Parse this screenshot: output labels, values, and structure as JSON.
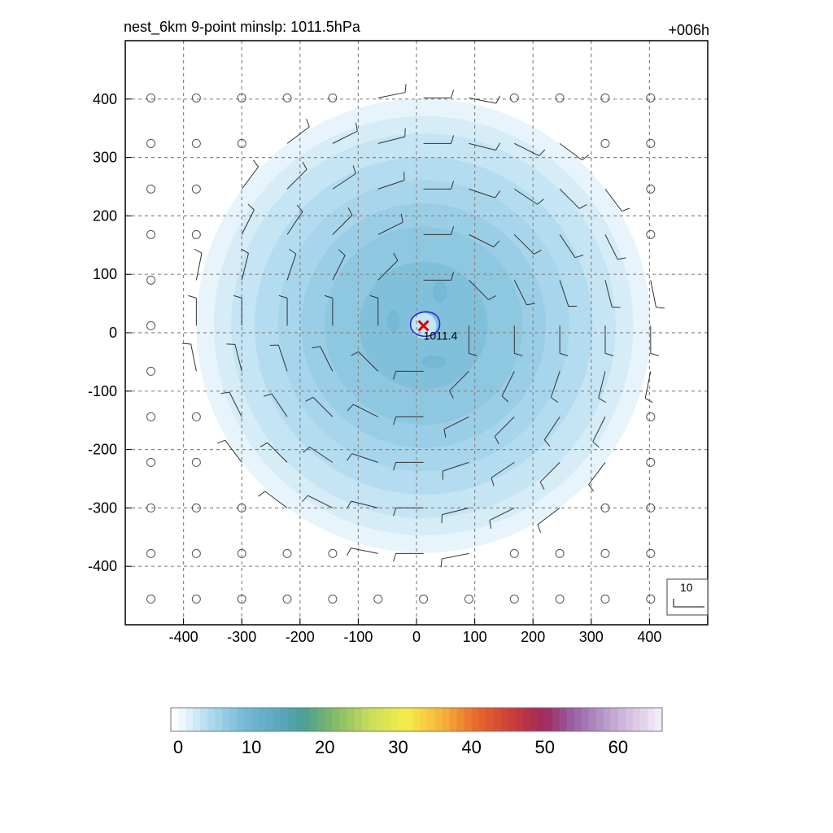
{
  "title_left": "nest_6km  9-point minslp: 1011.5hPa",
  "title_right": "+006h",
  "chart_data": {
    "type": "filled-contour-map",
    "title": "nest_6km  9-point minslp: 1011.5hPa",
    "valid_time_label": "+006h",
    "xlim": [
      -500,
      500
    ],
    "ylim": [
      -500,
      500
    ],
    "xticks": [
      -400,
      -300,
      -200,
      -100,
      0,
      100,
      200,
      300,
      400
    ],
    "yticks": [
      -400,
      -300,
      -200,
      -100,
      0,
      100,
      200,
      300,
      400
    ],
    "xtick_labels": [
      "-400",
      "-300",
      "-200",
      "-100",
      "0",
      "100",
      "200",
      "300",
      "400"
    ],
    "ytick_labels": [
      "400",
      "300",
      "200",
      "100",
      "0",
      "-100",
      "-200",
      "-300",
      "-400"
    ],
    "grid": true,
    "wind_field": {
      "center": [
        12,
        12
      ],
      "levels": [
        {
          "radius": 390,
          "value": 2
        },
        {
          "radius": 360,
          "value": 3
        },
        {
          "radius": 330,
          "value": 4
        },
        {
          "radius": 290,
          "value": 5
        },
        {
          "radius": 250,
          "value": 6
        },
        {
          "radius": 210,
          "value": 7
        },
        {
          "radius": 170,
          "value": 8
        },
        {
          "radius": 110,
          "value": 9
        }
      ],
      "barb_spacing": 78,
      "calm_radius": 400
    },
    "min_pressure_contour": {
      "value": "1011.4",
      "center": [
        12,
        12
      ],
      "radius": 22
    },
    "center_marker": {
      "x": 12,
      "y": 12,
      "symbol": "x",
      "color": "#dd0000"
    },
    "reference_vector": {
      "label": "10"
    },
    "colorbar": {
      "min": 0,
      "max": 67,
      "tick_values": [
        0,
        10,
        20,
        30,
        40,
        50,
        60
      ],
      "tick_labels": [
        "0",
        "10",
        "20",
        "30",
        "40",
        "50",
        "60"
      ],
      "color_stops": [
        {
          "value": 0,
          "color": "#ffffff"
        },
        {
          "value": 2,
          "color": "#e8f4fb"
        },
        {
          "value": 5,
          "color": "#b3dcf0"
        },
        {
          "value": 10,
          "color": "#75b9d6"
        },
        {
          "value": 15,
          "color": "#5aa6bd"
        },
        {
          "value": 18,
          "color": "#4a9e94"
        },
        {
          "value": 22,
          "color": "#7db86a"
        },
        {
          "value": 27,
          "color": "#c8dc5a"
        },
        {
          "value": 32,
          "color": "#f5ee4a"
        },
        {
          "value": 37,
          "color": "#f6b23a"
        },
        {
          "value": 42,
          "color": "#e8642c"
        },
        {
          "value": 47,
          "color": "#c63a3a"
        },
        {
          "value": 51,
          "color": "#9e2a5e"
        },
        {
          "value": 55,
          "color": "#9a62a8"
        },
        {
          "value": 61,
          "color": "#c7b0d8"
        },
        {
          "value": 67,
          "color": "#f6f0f8"
        }
      ]
    }
  }
}
